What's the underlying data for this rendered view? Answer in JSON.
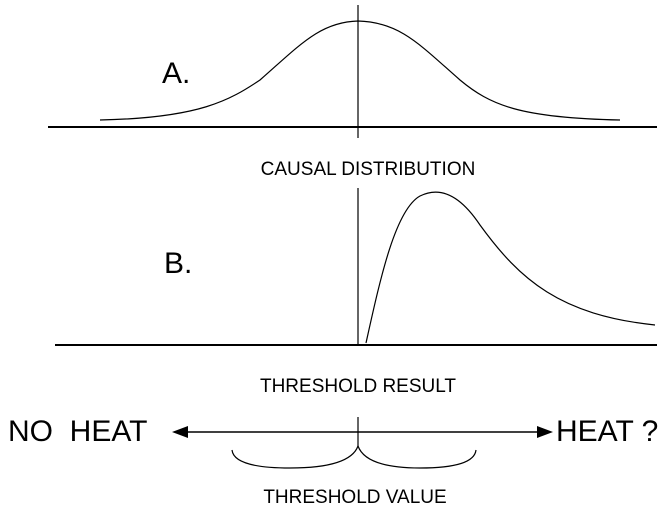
{
  "panel_a": {
    "label": "A.",
    "caption": "CAUSAL DISTRIBUTION"
  },
  "panel_b": {
    "label": "B.",
    "caption": "THRESHOLD RESULT"
  },
  "scale": {
    "left": "NO  HEAT",
    "right": "HEAT ?",
    "marker": "THRESHOLD VALUE"
  }
}
